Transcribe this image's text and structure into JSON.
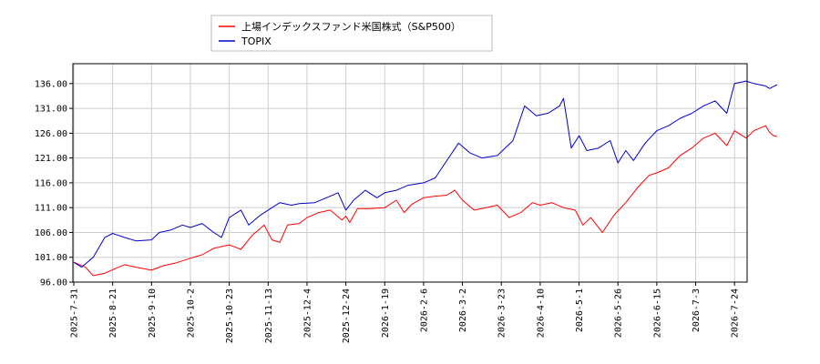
{
  "chart_data": {
    "type": "line",
    "legend_position": "top",
    "grid": true,
    "ylim": [
      96,
      140
    ],
    "y_ticks": [
      "96.00",
      "101.00",
      "106.00",
      "111.00",
      "116.00",
      "121.00",
      "126.00",
      "131.00",
      "136.00"
    ],
    "x_ticks": [
      "2025-7-31",
      "2025-8-21",
      "2025-9-10",
      "2025-10-2",
      "2025-10-23",
      "2025-11-13",
      "2025-12-4",
      "2025-12-24",
      "2026-1-19",
      "2026-2-6",
      "2026-3-2",
      "2026-3-23",
      "2026-4-10",
      "2026-5-1",
      "2026-5-26",
      "2026-6-15",
      "2026-7-3",
      "2026-7-24"
    ],
    "series": [
      {
        "name": "上場インデックスファンド米国株式（S&P500）",
        "color": "#ff0000",
        "points": [
          [
            0,
            100.0
          ],
          [
            0.3,
            99.0
          ],
          [
            0.5,
            97.3
          ],
          [
            0.8,
            97.8
          ],
          [
            1,
            98.5
          ],
          [
            1.3,
            99.5
          ],
          [
            1.6,
            99.0
          ],
          [
            2,
            98.4
          ],
          [
            2.3,
            99.3
          ],
          [
            2.6,
            99.8
          ],
          [
            3,
            100.8
          ],
          [
            3.3,
            101.5
          ],
          [
            3.6,
            102.8
          ],
          [
            4,
            103.5
          ],
          [
            4.3,
            102.6
          ],
          [
            4.6,
            105.5
          ],
          [
            4.9,
            107.5
          ],
          [
            5.1,
            104.5
          ],
          [
            5.3,
            104.0
          ],
          [
            5.5,
            107.5
          ],
          [
            5.8,
            107.8
          ],
          [
            6,
            109.0
          ],
          [
            6.3,
            110.0
          ],
          [
            6.6,
            110.5
          ],
          [
            6.9,
            108.5
          ],
          [
            7,
            109.3
          ],
          [
            7.1,
            108.0
          ],
          [
            7.3,
            110.8
          ],
          [
            7.6,
            110.8
          ],
          [
            8,
            111.0
          ],
          [
            8.3,
            112.5
          ],
          [
            8.5,
            110.0
          ],
          [
            8.7,
            111.7
          ],
          [
            9,
            113.0
          ],
          [
            9.3,
            113.3
          ],
          [
            9.6,
            113.5
          ],
          [
            9.8,
            114.5
          ],
          [
            10,
            112.5
          ],
          [
            10.3,
            110.5
          ],
          [
            10.6,
            111.0
          ],
          [
            10.9,
            111.5
          ],
          [
            11.2,
            109.0
          ],
          [
            11.5,
            110.0
          ],
          [
            11.8,
            112.0
          ],
          [
            12,
            111.5
          ],
          [
            12.3,
            112.0
          ],
          [
            12.6,
            111.0
          ],
          [
            12.9,
            110.5
          ],
          [
            13.1,
            107.5
          ],
          [
            13.3,
            109.0
          ],
          [
            13.6,
            106.0
          ],
          [
            13.9,
            109.5
          ],
          [
            14.2,
            112.0
          ],
          [
            14.5,
            115.0
          ],
          [
            14.8,
            117.5
          ],
          [
            15,
            118.0
          ],
          [
            15.3,
            119.0
          ],
          [
            15.6,
            121.5
          ],
          [
            15.9,
            123.0
          ],
          [
            16.2,
            125.0
          ],
          [
            16.5,
            126.0
          ],
          [
            16.8,
            123.5
          ],
          [
            17,
            126.5
          ],
          [
            17.3,
            125.0
          ],
          [
            17.5,
            126.5
          ],
          [
            17.8,
            127.5
          ],
          [
            17.9,
            126.2
          ],
          [
            18,
            125.5
          ],
          [
            18.1,
            125.3
          ]
        ]
      },
      {
        "name": "TOPIX",
        "color": "#0000cc",
        "points": [
          [
            0,
            100.0
          ],
          [
            0.2,
            99.0
          ],
          [
            0.5,
            101.0
          ],
          [
            0.8,
            105.0
          ],
          [
            1,
            105.8
          ],
          [
            1.3,
            105.0
          ],
          [
            1.6,
            104.3
          ],
          [
            2,
            104.5
          ],
          [
            2.2,
            106.0
          ],
          [
            2.5,
            106.5
          ],
          [
            2.8,
            107.5
          ],
          [
            3,
            107.0
          ],
          [
            3.3,
            107.8
          ],
          [
            3.6,
            106.0
          ],
          [
            3.8,
            105.0
          ],
          [
            4,
            109.0
          ],
          [
            4.3,
            110.5
          ],
          [
            4.5,
            107.5
          ],
          [
            4.8,
            109.5
          ],
          [
            5,
            110.5
          ],
          [
            5.3,
            112.0
          ],
          [
            5.6,
            111.5
          ],
          [
            5.8,
            111.8
          ],
          [
            6.2,
            112.0
          ],
          [
            6.5,
            113.0
          ],
          [
            6.8,
            114.0
          ],
          [
            7,
            110.5
          ],
          [
            7.2,
            112.5
          ],
          [
            7.5,
            114.5
          ],
          [
            7.8,
            113.0
          ],
          [
            8,
            114.0
          ],
          [
            8.3,
            114.5
          ],
          [
            8.6,
            115.5
          ],
          [
            9,
            116.0
          ],
          [
            9.3,
            117.0
          ],
          [
            9.6,
            120.5
          ],
          [
            9.9,
            124.0
          ],
          [
            10.2,
            122.0
          ],
          [
            10.5,
            121.0
          ],
          [
            10.9,
            121.5
          ],
          [
            11.3,
            124.5
          ],
          [
            11.6,
            131.5
          ],
          [
            11.9,
            129.5
          ],
          [
            12.2,
            130.0
          ],
          [
            12.5,
            131.5
          ],
          [
            12.6,
            133.0
          ],
          [
            12.7,
            128.0
          ],
          [
            12.8,
            123.0
          ],
          [
            13.0,
            125.5
          ],
          [
            13.2,
            122.5
          ],
          [
            13.5,
            123.0
          ],
          [
            13.8,
            124.5
          ],
          [
            14.0,
            120.0
          ],
          [
            14.2,
            122.5
          ],
          [
            14.4,
            120.5
          ],
          [
            14.7,
            124.0
          ],
          [
            15,
            126.5
          ],
          [
            15.3,
            127.5
          ],
          [
            15.6,
            129.0
          ],
          [
            15.9,
            130.0
          ],
          [
            16.2,
            131.5
          ],
          [
            16.5,
            132.5
          ],
          [
            16.8,
            130.0
          ],
          [
            17,
            136.0
          ],
          [
            17.3,
            136.5
          ],
          [
            17.5,
            136.0
          ],
          [
            17.8,
            135.5
          ],
          [
            17.9,
            135.0
          ],
          [
            18.1,
            135.8
          ]
        ]
      }
    ]
  }
}
